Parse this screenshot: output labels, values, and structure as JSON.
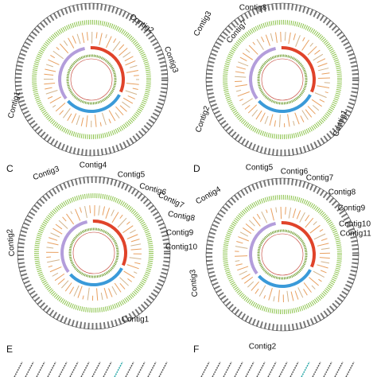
{
  "panels": [
    {
      "contigs": [
        "Contig2",
        "Contig3",
        "Contig1"
      ]
    },
    {
      "contigs": [
        "Contig3",
        "Contig8",
        "Contig7",
        "Contig2",
        "Contig1"
      ]
    },
    {
      "label": "C",
      "contigs": [
        "Contig3",
        "Contig4",
        "Contig5",
        "Contig6",
        "Contig7",
        "Contig8",
        "Contig9",
        "Contig10",
        "Contig2",
        "Contig1"
      ]
    },
    {
      "label": "D",
      "contigs": [
        "Contig4",
        "Contig5",
        "Contig6",
        "Contig7",
        "Contig8",
        "Contig9",
        "Contig10",
        "Contig11",
        "Contig3",
        "Contig2"
      ]
    }
  ],
  "bottom_panels": [
    {
      "label": "E"
    },
    {
      "label": "F"
    }
  ]
}
